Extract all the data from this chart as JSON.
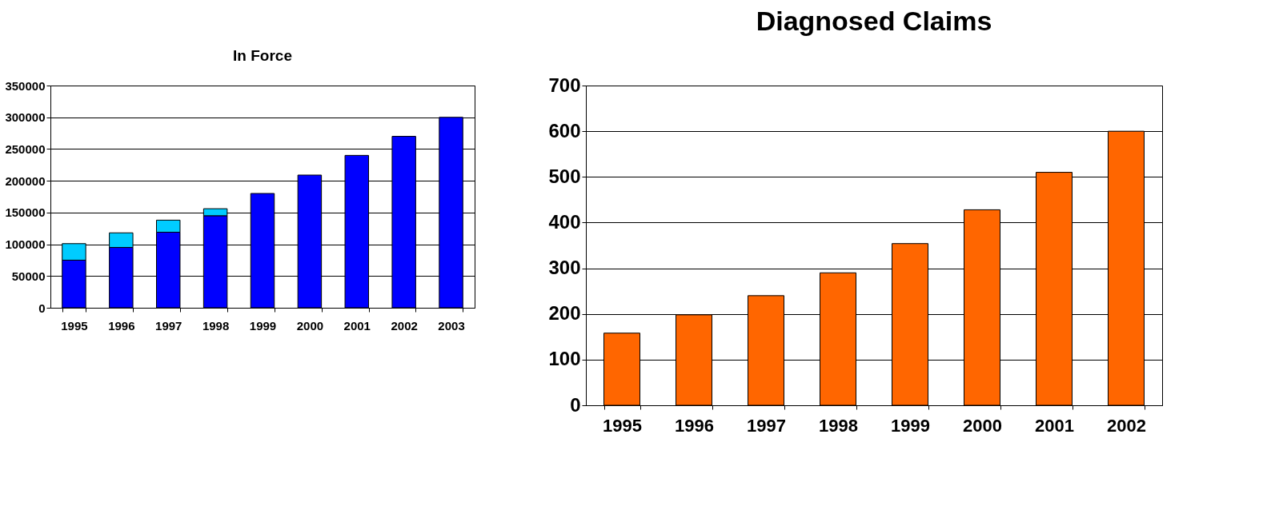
{
  "chart_data": [
    {
      "type": "bar",
      "title": "In Force",
      "stacked": true,
      "categories": [
        "1995",
        "1996",
        "1997",
        "1998",
        "1999",
        "2000",
        "2001",
        "2002",
        "2003"
      ],
      "series": [
        {
          "color": "#0000ff",
          "values": [
            75000,
            95000,
            119000,
            145000,
            180000,
            209000,
            240000,
            270000,
            300000
          ]
        },
        {
          "color": "#00ccff",
          "values": [
            26000,
            23000,
            19000,
            11000,
            null,
            null,
            null,
            null,
            null
          ]
        }
      ],
      "ylim": [
        0,
        350000
      ],
      "yticks": [
        0,
        50000,
        100000,
        150000,
        200000,
        250000,
        300000,
        350000
      ],
      "grid": "y",
      "legend": false
    },
    {
      "type": "bar",
      "title": "Diagnosed Claims",
      "categories": [
        "1995",
        "1996",
        "1997",
        "1998",
        "1999",
        "2000",
        "2001",
        "2002"
      ],
      "series": [
        {
          "color": "#ff6600",
          "values": [
            158,
            198,
            240,
            290,
            354,
            428,
            510,
            600
          ]
        }
      ],
      "ylim": [
        0,
        700
      ],
      "yticks": [
        0,
        100,
        200,
        300,
        400,
        500,
        600,
        700
      ],
      "grid": "y",
      "legend": false
    }
  ]
}
